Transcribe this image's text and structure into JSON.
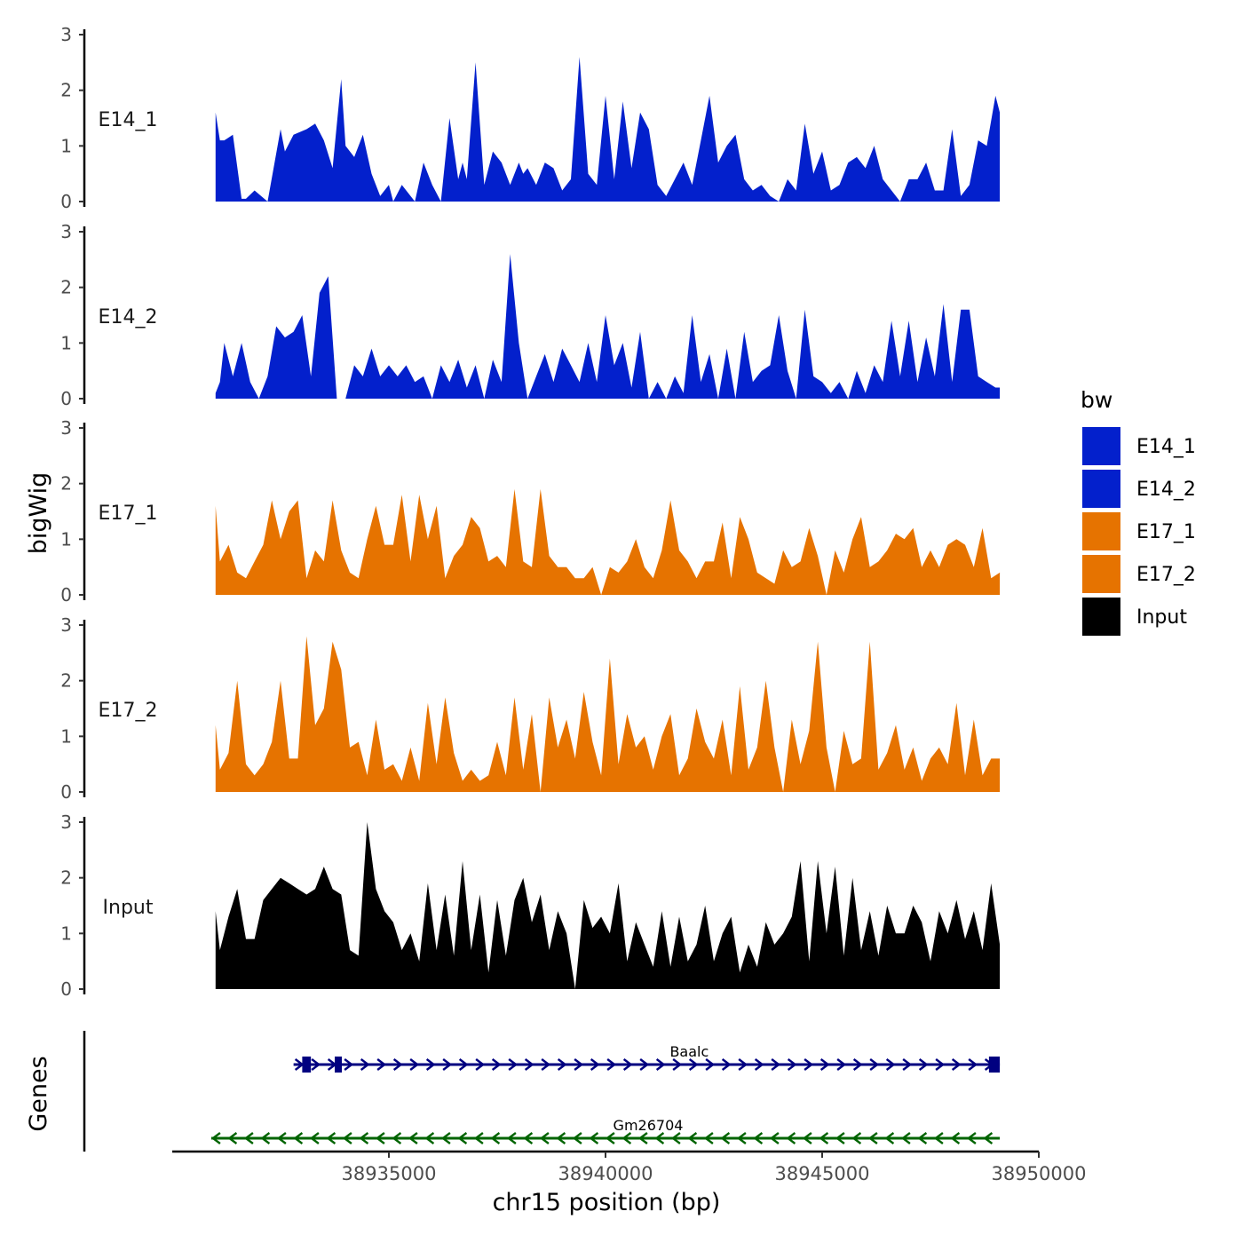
{
  "chart_data": {
    "type": "area",
    "y_axis_title": "bigWig",
    "genes_axis_title": "Genes",
    "x_axis_title": "chr15 position (bp)",
    "xlim": [
      38930000,
      38950000
    ],
    "x_ticks": [
      38935000,
      38940000,
      38945000,
      38950000
    ],
    "x_tick_labels": [
      "38935000",
      "38940000",
      "38945000",
      "38950000"
    ],
    "ylim": [
      0,
      3
    ],
    "y_ticks": [
      0,
      1,
      2,
      3
    ],
    "y_tick_labels": [
      "0",
      "1",
      "2",
      "3"
    ],
    "legend": {
      "title": "bw",
      "position": "right",
      "entries": [
        {
          "label": "E14_1",
          "color": "#0320CC"
        },
        {
          "label": "E14_2",
          "color": "#0320CC"
        },
        {
          "label": "E17_1",
          "color": "#E67300"
        },
        {
          "label": "E17_2",
          "color": "#E67300"
        },
        {
          "label": "Input",
          "color": "#000000"
        }
      ]
    },
    "x_start": 38931000,
    "x_end": 38949100,
    "series": [
      {
        "name": "E14_1",
        "color": "#0320CC",
        "x": [
          38931000,
          38931100,
          38931200,
          38931400,
          38931600,
          38931700,
          38931900,
          38932200,
          38932500,
          38932600,
          38932800,
          38933100,
          38933300,
          38933500,
          38933700,
          38933900,
          38934000,
          38934200,
          38934400,
          38934600,
          38934800,
          38935000,
          38935100,
          38935300,
          38935600,
          38935800,
          38936000,
          38936200,
          38936400,
          38936600,
          38936700,
          38936800,
          38937000,
          38937200,
          38937400,
          38937600,
          38937800,
          38938000,
          38938100,
          38938200,
          38938400,
          38938600,
          38938800,
          38939000,
          38939200,
          38939400,
          38939600,
          38939800,
          38940000,
          38940200,
          38940400,
          38940600,
          38940800,
          38941000,
          38941200,
          38941400,
          38941600,
          38941800,
          38942000,
          38942200,
          38942400,
          38942600,
          38942800,
          38943000,
          38943200,
          38943400,
          38943600,
          38943800,
          38944000,
          38944200,
          38944400,
          38944600,
          38944800,
          38945000,
          38945200,
          38945400,
          38945600,
          38945800,
          38946000,
          38946200,
          38946400,
          38946600,
          38946800,
          38947000,
          38947200,
          38947400,
          38947600,
          38947800,
          38948000,
          38948200,
          38948400,
          38948600,
          38948800,
          38949000,
          38949100
        ],
        "values": [
          1.6,
          1.1,
          1.1,
          1.2,
          0.05,
          0.05,
          0.2,
          0.0,
          1.3,
          0.9,
          1.2,
          1.3,
          1.4,
          1.1,
          0.6,
          2.2,
          1.0,
          0.8,
          1.2,
          0.5,
          0.1,
          0.3,
          0.0,
          0.3,
          0.0,
          0.7,
          0.3,
          0.0,
          1.5,
          0.4,
          0.7,
          0.4,
          2.5,
          0.3,
          0.9,
          0.7,
          0.3,
          0.7,
          0.5,
          0.6,
          0.3,
          0.7,
          0.6,
          0.2,
          0.4,
          2.6,
          0.5,
          0.3,
          1.9,
          0.4,
          1.8,
          0.6,
          1.6,
          1.3,
          0.3,
          0.1,
          0.4,
          0.7,
          0.3,
          1.1,
          1.9,
          0.7,
          1.0,
          1.2,
          0.4,
          0.2,
          0.3,
          0.1,
          0.0,
          0.4,
          0.2,
          1.4,
          0.5,
          0.9,
          0.2,
          0.3,
          0.7,
          0.8,
          0.6,
          1.0,
          0.4,
          0.2,
          0.0,
          0.4,
          0.4,
          0.7,
          0.2,
          0.2,
          1.3,
          0.1,
          0.3,
          1.1,
          1.0,
          1.9,
          1.6
        ]
      },
      {
        "name": "E14_2",
        "color": "#0320CC",
        "x": [
          38931000,
          38931100,
          38931200,
          38931400,
          38931600,
          38931800,
          38932000,
          38932200,
          38932400,
          38932600,
          38932800,
          38933000,
          38933200,
          38933400,
          38933600,
          38933800,
          38934000,
          38934200,
          38934400,
          38934600,
          38934800,
          38935000,
          38935200,
          38935400,
          38935600,
          38935800,
          38936000,
          38936200,
          38936400,
          38936600,
          38936800,
          38937000,
          38937200,
          38937400,
          38937600,
          38937800,
          38938000,
          38938200,
          38938400,
          38938600,
          38938800,
          38939000,
          38939200,
          38939400,
          38939600,
          38939800,
          38940000,
          38940200,
          38940400,
          38940600,
          38940800,
          38941000,
          38941200,
          38941400,
          38941600,
          38941800,
          38942000,
          38942200,
          38942400,
          38942600,
          38942800,
          38943000,
          38943200,
          38943400,
          38943600,
          38943800,
          38944000,
          38944200,
          38944400,
          38944600,
          38944800,
          38945000,
          38945200,
          38945400,
          38945600,
          38945800,
          38946000,
          38946200,
          38946400,
          38946600,
          38946800,
          38947000,
          38947200,
          38947400,
          38947600,
          38947800,
          38948000,
          38948200,
          38948400,
          38948600,
          38948800,
          38949000,
          38949100
        ],
        "values": [
          0.1,
          0.3,
          1.0,
          0.4,
          1.0,
          0.3,
          0.0,
          0.4,
          1.3,
          1.1,
          1.2,
          1.5,
          0.4,
          1.9,
          2.2,
          0.0,
          0.0,
          0.6,
          0.4,
          0.9,
          0.4,
          0.6,
          0.4,
          0.6,
          0.3,
          0.4,
          0.0,
          0.6,
          0.3,
          0.7,
          0.2,
          0.6,
          0.0,
          0.7,
          0.3,
          2.6,
          1.0,
          0.0,
          0.4,
          0.8,
          0.3,
          0.9,
          0.6,
          0.3,
          1.0,
          0.3,
          1.5,
          0.6,
          1.0,
          0.2,
          1.2,
          0.0,
          0.3,
          0.0,
          0.4,
          0.1,
          1.5,
          0.3,
          0.8,
          0.0,
          0.9,
          0.0,
          1.2,
          0.3,
          0.5,
          0.6,
          1.5,
          0.5,
          0.0,
          1.6,
          0.4,
          0.3,
          0.1,
          0.3,
          0.0,
          0.5,
          0.1,
          0.6,
          0.3,
          1.4,
          0.4,
          1.4,
          0.3,
          1.1,
          0.4,
          1.7,
          0.3,
          1.6,
          1.6,
          0.4,
          0.3,
          0.2,
          0.2
        ]
      },
      {
        "name": "E17_1",
        "color": "#E67300",
        "x": [
          38931000,
          38931100,
          38931300,
          38931500,
          38931700,
          38931900,
          38932100,
          38932300,
          38932500,
          38932700,
          38932900,
          38933100,
          38933300,
          38933500,
          38933700,
          38933900,
          38934100,
          38934300,
          38934500,
          38934700,
          38934900,
          38935100,
          38935300,
          38935500,
          38935700,
          38935900,
          38936100,
          38936300,
          38936500,
          38936700,
          38936900,
          38937100,
          38937300,
          38937500,
          38937700,
          38937900,
          38938100,
          38938300,
          38938500,
          38938700,
          38938900,
          38939100,
          38939300,
          38939500,
          38939700,
          38939900,
          38940100,
          38940300,
          38940500,
          38940700,
          38940900,
          38941100,
          38941300,
          38941500,
          38941700,
          38941900,
          38942100,
          38942300,
          38942500,
          38942700,
          38942900,
          38943100,
          38943300,
          38943500,
          38943700,
          38943900,
          38944100,
          38944300,
          38944500,
          38944700,
          38944900,
          38945100,
          38945300,
          38945500,
          38945700,
          38945900,
          38946100,
          38946300,
          38946500,
          38946700,
          38946900,
          38947100,
          38947300,
          38947500,
          38947700,
          38947900,
          38948100,
          38948300,
          38948500,
          38948700,
          38948900,
          38949100
        ],
        "values": [
          1.6,
          0.6,
          0.9,
          0.4,
          0.3,
          0.6,
          0.9,
          1.7,
          1.0,
          1.5,
          1.7,
          0.3,
          0.8,
          0.6,
          1.7,
          0.8,
          0.4,
          0.3,
          1.0,
          1.6,
          0.9,
          0.9,
          1.8,
          0.6,
          1.8,
          1.0,
          1.6,
          0.3,
          0.7,
          0.9,
          1.4,
          1.2,
          0.6,
          0.7,
          0.5,
          1.9,
          0.6,
          0.5,
          1.9,
          0.7,
          0.5,
          0.5,
          0.3,
          0.3,
          0.5,
          0.0,
          0.5,
          0.4,
          0.6,
          1.0,
          0.5,
          0.3,
          0.8,
          1.7,
          0.8,
          0.6,
          0.3,
          0.6,
          0.6,
          1.3,
          0.3,
          1.4,
          1.0,
          0.4,
          0.3,
          0.2,
          0.8,
          0.5,
          0.6,
          1.2,
          0.7,
          0.0,
          0.8,
          0.4,
          1.0,
          1.4,
          0.5,
          0.6,
          0.8,
          1.1,
          1.0,
          1.2,
          0.5,
          0.8,
          0.5,
          0.9,
          1.0,
          0.9,
          0.5,
          1.2,
          0.3,
          0.4
        ]
      },
      {
        "name": "E17_2",
        "color": "#E67300",
        "x": [
          38931000,
          38931100,
          38931300,
          38931500,
          38931700,
          38931900,
          38932100,
          38932300,
          38932500,
          38932700,
          38932900,
          38933100,
          38933300,
          38933500,
          38933700,
          38933900,
          38934100,
          38934300,
          38934500,
          38934700,
          38934900,
          38935100,
          38935300,
          38935500,
          38935700,
          38935900,
          38936100,
          38936300,
          38936500,
          38936700,
          38936900,
          38937100,
          38937300,
          38937500,
          38937700,
          38937900,
          38938100,
          38938300,
          38938500,
          38938700,
          38938900,
          38939100,
          38939300,
          38939500,
          38939700,
          38939900,
          38940100,
          38940300,
          38940500,
          38940700,
          38940900,
          38941100,
          38941300,
          38941500,
          38941700,
          38941900,
          38942100,
          38942300,
          38942500,
          38942700,
          38942900,
          38943100,
          38943300,
          38943500,
          38943700,
          38943900,
          38944100,
          38944300,
          38944500,
          38944700,
          38944900,
          38945100,
          38945300,
          38945500,
          38945700,
          38945900,
          38946100,
          38946300,
          38946500,
          38946700,
          38946900,
          38947100,
          38947300,
          38947500,
          38947700,
          38947900,
          38948100,
          38948300,
          38948500,
          38948700,
          38948900,
          38949100
        ],
        "values": [
          1.2,
          0.4,
          0.7,
          2.0,
          0.5,
          0.3,
          0.5,
          0.9,
          2.0,
          0.6,
          0.6,
          2.8,
          1.2,
          1.5,
          2.7,
          2.2,
          0.8,
          0.9,
          0.3,
          1.3,
          0.4,
          0.5,
          0.2,
          0.8,
          0.2,
          1.6,
          0.5,
          1.7,
          0.7,
          0.2,
          0.4,
          0.2,
          0.3,
          0.9,
          0.3,
          1.7,
          0.4,
          1.4,
          0.0,
          1.7,
          0.8,
          1.3,
          0.6,
          1.8,
          0.9,
          0.3,
          2.4,
          0.5,
          1.4,
          0.8,
          1.0,
          0.4,
          1.0,
          1.4,
          0.3,
          0.6,
          1.5,
          0.9,
          0.6,
          1.3,
          0.3,
          1.9,
          0.4,
          0.8,
          2.0,
          0.8,
          0.0,
          1.3,
          0.5,
          1.1,
          2.7,
          0.8,
          0.0,
          1.1,
          0.5,
          0.6,
          2.7,
          0.4,
          0.7,
          1.2,
          0.4,
          0.8,
          0.2,
          0.6,
          0.8,
          0.5,
          1.6,
          0.3,
          1.3,
          0.3,
          0.6,
          0.6
        ]
      },
      {
        "name": "Input",
        "color": "#000000",
        "x": [
          38931000,
          38931100,
          38931300,
          38931500,
          38931700,
          38931900,
          38932100,
          38932300,
          38932500,
          38932700,
          38932900,
          38933100,
          38933300,
          38933500,
          38933700,
          38933900,
          38934100,
          38934300,
          38934500,
          38934700,
          38934900,
          38935100,
          38935300,
          38935500,
          38935700,
          38935900,
          38936100,
          38936300,
          38936500,
          38936700,
          38936900,
          38937100,
          38937300,
          38937500,
          38937700,
          38937900,
          38938100,
          38938300,
          38938500,
          38938700,
          38938900,
          38939100,
          38939300,
          38939500,
          38939700,
          38939900,
          38940100,
          38940300,
          38940500,
          38940700,
          38940900,
          38941100,
          38941300,
          38941500,
          38941700,
          38941900,
          38942100,
          38942300,
          38942500,
          38942700,
          38942900,
          38943100,
          38943300,
          38943500,
          38943700,
          38943900,
          38944100,
          38944300,
          38944500,
          38944700,
          38944900,
          38945100,
          38945300,
          38945500,
          38945700,
          38945900,
          38946100,
          38946300,
          38946500,
          38946700,
          38946900,
          38947100,
          38947300,
          38947500,
          38947700,
          38947900,
          38948100,
          38948300,
          38948500,
          38948700,
          38948900,
          38949100
        ],
        "values": [
          1.4,
          0.7,
          1.3,
          1.8,
          0.9,
          0.9,
          1.6,
          1.8,
          2.0,
          1.9,
          1.8,
          1.7,
          1.8,
          2.2,
          1.8,
          1.7,
          0.7,
          0.6,
          3.0,
          1.8,
          1.4,
          1.2,
          0.7,
          1.0,
          0.5,
          1.9,
          0.7,
          1.7,
          0.6,
          2.3,
          0.7,
          1.7,
          0.3,
          1.6,
          0.6,
          1.6,
          2.0,
          1.2,
          1.7,
          0.7,
          1.4,
          1.0,
          0.0,
          1.6,
          1.1,
          1.3,
          1.0,
          1.9,
          0.5,
          1.2,
          0.8,
          0.4,
          1.4,
          0.4,
          1.3,
          0.5,
          0.8,
          1.5,
          0.5,
          1.0,
          1.3,
          0.3,
          0.8,
          0.4,
          1.2,
          0.8,
          1.0,
          1.3,
          2.3,
          0.5,
          2.3,
          1.0,
          2.2,
          0.6,
          2.0,
          0.7,
          1.4,
          0.6,
          1.5,
          1.0,
          1.0,
          1.5,
          1.2,
          0.5,
          1.4,
          1.0,
          1.6,
          0.9,
          1.4,
          0.7,
          1.9,
          0.8
        ]
      }
    ],
    "genes": [
      {
        "name": "Baalc",
        "strand": "+",
        "color": "#000080",
        "start": 38932800,
        "end": 38949100,
        "exons": [
          [
            38933000,
            38933200
          ],
          [
            38933750,
            38933900
          ],
          [
            38948850,
            38949100
          ]
        ]
      },
      {
        "name": "Gm26704",
        "strand": "-",
        "color": "#006400",
        "start": 38930900,
        "end": 38949100,
        "exons": []
      }
    ]
  }
}
